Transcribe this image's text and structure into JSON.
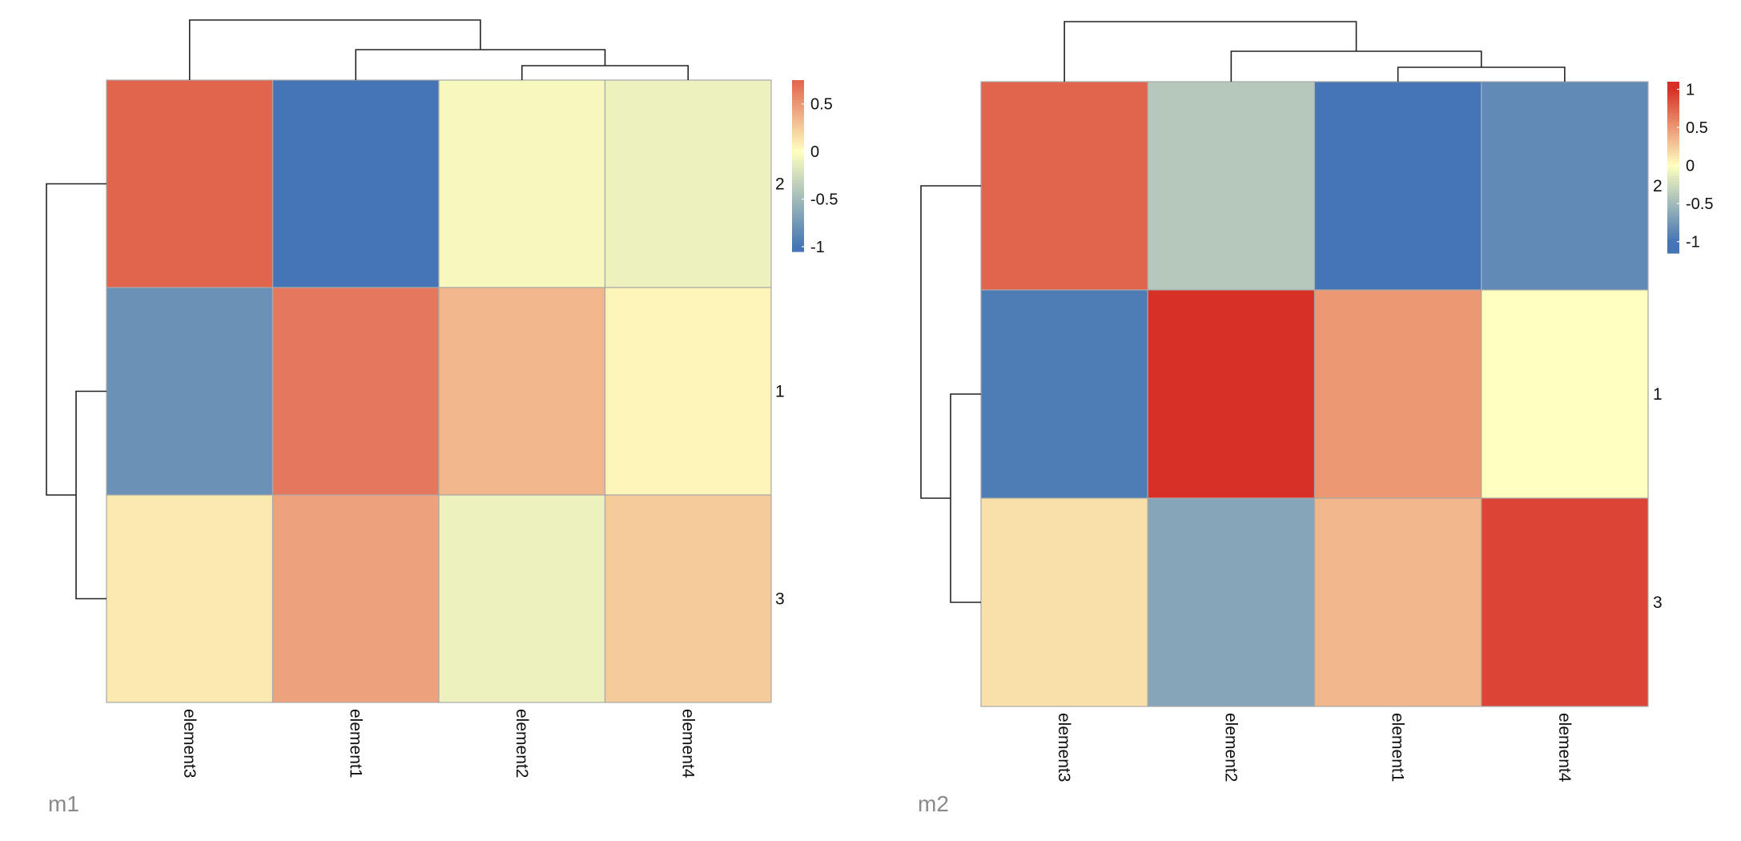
{
  "chart_data": [
    {
      "type": "heatmap",
      "caption": "m1",
      "columns": [
        "element3",
        "element1",
        "element2",
        "element4"
      ],
      "rows": [
        "2",
        "1",
        "3"
      ],
      "values": [
        [
          0.75,
          -1.0,
          -0.05,
          -0.1
        ],
        [
          -0.8,
          0.65,
          0.35,
          0.05
        ],
        [
          0.1,
          0.45,
          -0.1,
          0.25
        ]
      ],
      "legend": {
        "ticks": [
          0.5,
          0,
          -0.5,
          -1
        ],
        "tick_labels": [
          "0.5",
          "0",
          "-0.5",
          "-1"
        ],
        "range": [
          -1.05,
          0.75
        ],
        "placement": "right"
      },
      "colors": {
        "low": "#4575b4",
        "mid": "#ffffbf",
        "high": "#d73027"
      },
      "grid": true
    },
    {
      "type": "heatmap",
      "caption": "m2",
      "columns": [
        "element3",
        "element2",
        "element1",
        "element4"
      ],
      "rows": [
        "2",
        "1",
        "3"
      ],
      "values": [
        [
          0.75,
          -0.4,
          -1.0,
          -0.85
        ],
        [
          -0.95,
          1.05,
          0.5,
          0.0
        ],
        [
          0.15,
          -0.65,
          0.35,
          0.9
        ]
      ],
      "legend": {
        "ticks": [
          1,
          0.5,
          0,
          -0.5,
          -1
        ],
        "tick_labels": [
          "1",
          "0.5",
          "0",
          "-0.5",
          "-1"
        ],
        "range": [
          -1.15,
          1.1
        ],
        "placement": "right"
      },
      "colors": {
        "low": "#4575b4",
        "mid": "#ffffbf",
        "high": "#d73027"
      },
      "grid": true
    }
  ]
}
